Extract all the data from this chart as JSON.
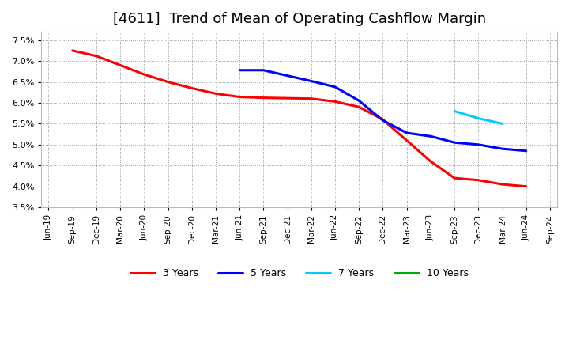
{
  "title": "[4611]  Trend of Mean of Operating Cashflow Margin",
  "ylim": [
    0.035,
    0.077
  ],
  "yticks": [
    0.035,
    0.04,
    0.045,
    0.05,
    0.055,
    0.06,
    0.065,
    0.07,
    0.075
  ],
  "xtick_labels": [
    "Jun-19",
    "Sep-19",
    "Dec-19",
    "Mar-20",
    "Jun-20",
    "Sep-20",
    "Dec-20",
    "Mar-21",
    "Jun-21",
    "Sep-21",
    "Dec-21",
    "Mar-22",
    "Jun-22",
    "Sep-22",
    "Dec-22",
    "Mar-23",
    "Jun-23",
    "Sep-23",
    "Dec-23",
    "Mar-24",
    "Jun-24",
    "Sep-24"
  ],
  "series_3y": {
    "label": "3 Years",
    "color": "#FF0000",
    "x": [
      1,
      2,
      3,
      4,
      5,
      6,
      7,
      8,
      9,
      10,
      11,
      12,
      13,
      14,
      15,
      16,
      17,
      18,
      19,
      20
    ],
    "y": [
      0.0725,
      0.0712,
      0.069,
      0.0668,
      0.065,
      0.0635,
      0.0622,
      0.0614,
      0.0612,
      0.0611,
      0.061,
      0.0603,
      0.059,
      0.056,
      0.051,
      0.046,
      0.042,
      0.0415,
      0.0405,
      0.04
    ]
  },
  "series_5y": {
    "label": "5 Years",
    "color": "#0000FF",
    "x": [
      8,
      9,
      10,
      11,
      12,
      13,
      14,
      15,
      16,
      17,
      18,
      19,
      20
    ],
    "y": [
      0.0678,
      0.0678,
      0.0665,
      0.0652,
      0.0638,
      0.0605,
      0.0558,
      0.0528,
      0.052,
      0.0505,
      0.05,
      0.049,
      0.0485
    ]
  },
  "series_7y": {
    "label": "7 Years",
    "color": "#00CCFF",
    "x": [
      17,
      18,
      19
    ],
    "y": [
      0.058,
      0.0563,
      0.055
    ]
  },
  "series_10y": {
    "label": "10 Years",
    "color": "#00AA00",
    "x": [],
    "y": []
  },
  "background_color": "#FFFFFF",
  "plot_bg_color": "#FFFFFF",
  "grid_color": "#999999",
  "title_fontsize": 13
}
